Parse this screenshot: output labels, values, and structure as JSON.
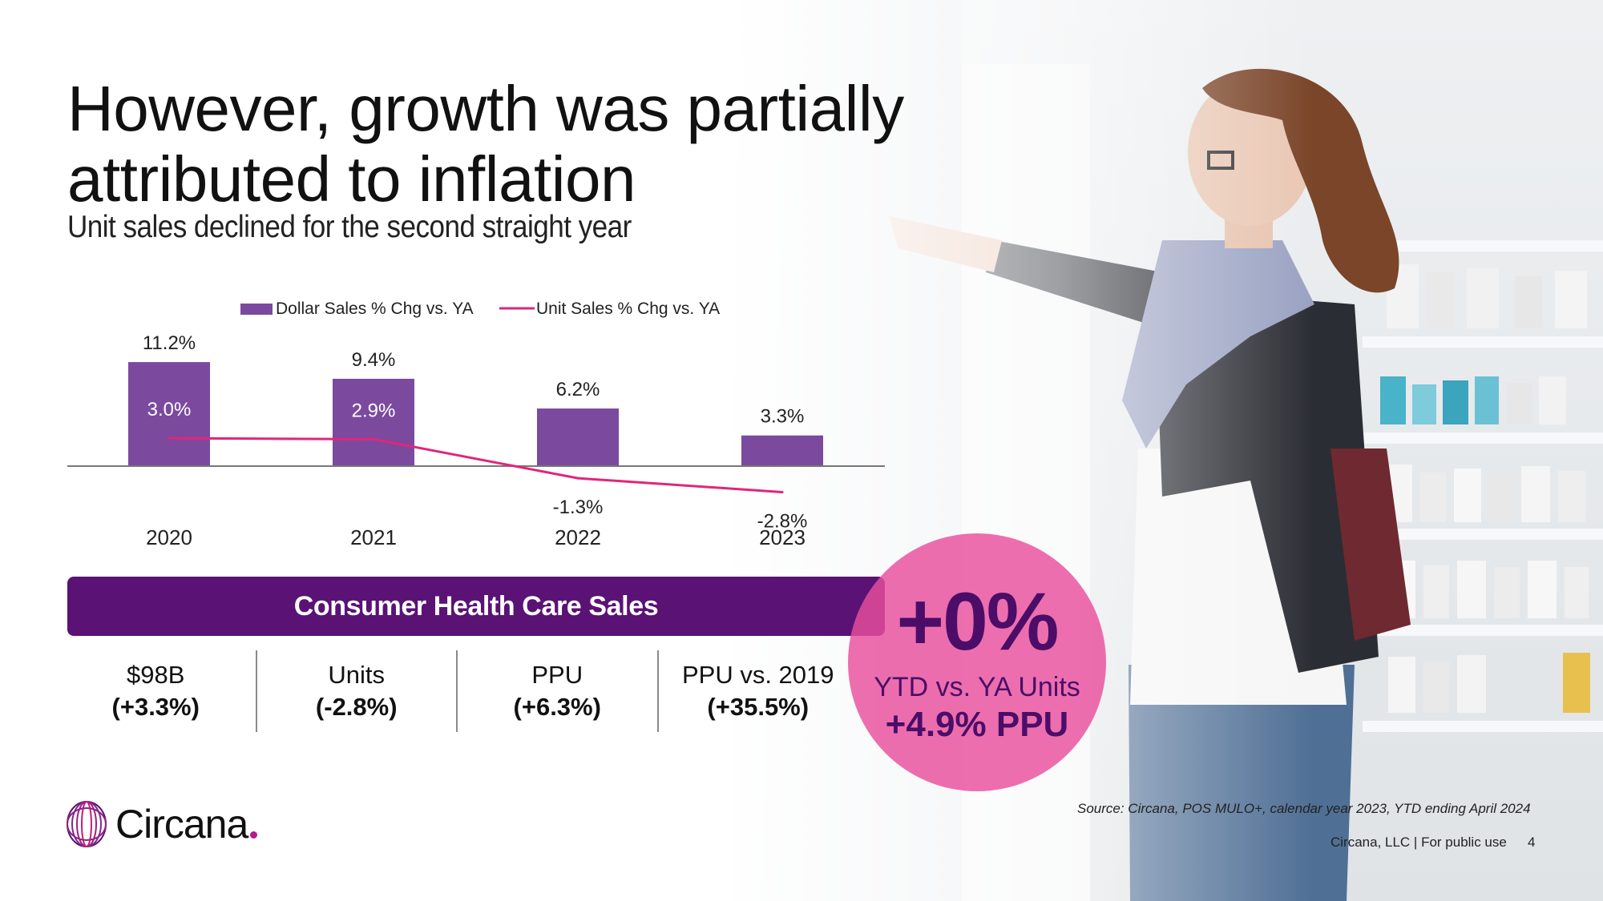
{
  "slide": {
    "title": "However, growth was partially attributed to inflation",
    "subtitle": "Unit sales declined for the second straight year"
  },
  "chart_data": {
    "type": "bar+line",
    "title": "",
    "categories": [
      "2020",
      "2021",
      "2022",
      "2023"
    ],
    "series": [
      {
        "name": "Dollar Sales % Chg vs. YA",
        "type": "bar",
        "color": "#7b4a9e",
        "values": [
          11.2,
          9.4,
          6.2,
          3.3
        ],
        "labels": [
          "11.2%",
          "9.4%",
          "6.2%",
          "3.3%"
        ]
      },
      {
        "name": "Unit Sales % Chg vs. YA",
        "type": "line",
        "color": "#e0267a",
        "values": [
          3.0,
          2.9,
          -1.3,
          -2.8
        ],
        "labels": [
          "3.0%",
          "2.9%",
          "-1.3%",
          "-2.8%"
        ]
      }
    ],
    "ylim": [
      -5,
      13
    ],
    "legend": "top",
    "grid": false
  },
  "summary": {
    "banner": "Consumer Health Care Sales",
    "metrics": [
      {
        "label": "$98B",
        "value": "(+3.3%)"
      },
      {
        "label": "Units",
        "value": "(-2.8%)"
      },
      {
        "label": "PPU",
        "value": "(+6.3%)"
      },
      {
        "label": "PPU vs. 2019",
        "value": "(+35.5%)"
      }
    ]
  },
  "callout": {
    "big": "+0%",
    "line2": "YTD vs. YA Units",
    "line3": "+4.9% PPU"
  },
  "brand": {
    "name": "Circana",
    "accent": "#b31d8a",
    "purple": "#5a1275",
    "pink": "#e94e9c"
  },
  "footer": {
    "source": "Source: Circana, POS MULO+, calendar year 2023, YTD ending April 2024",
    "company": "Circana, LLC |  For public use",
    "page": "4"
  }
}
